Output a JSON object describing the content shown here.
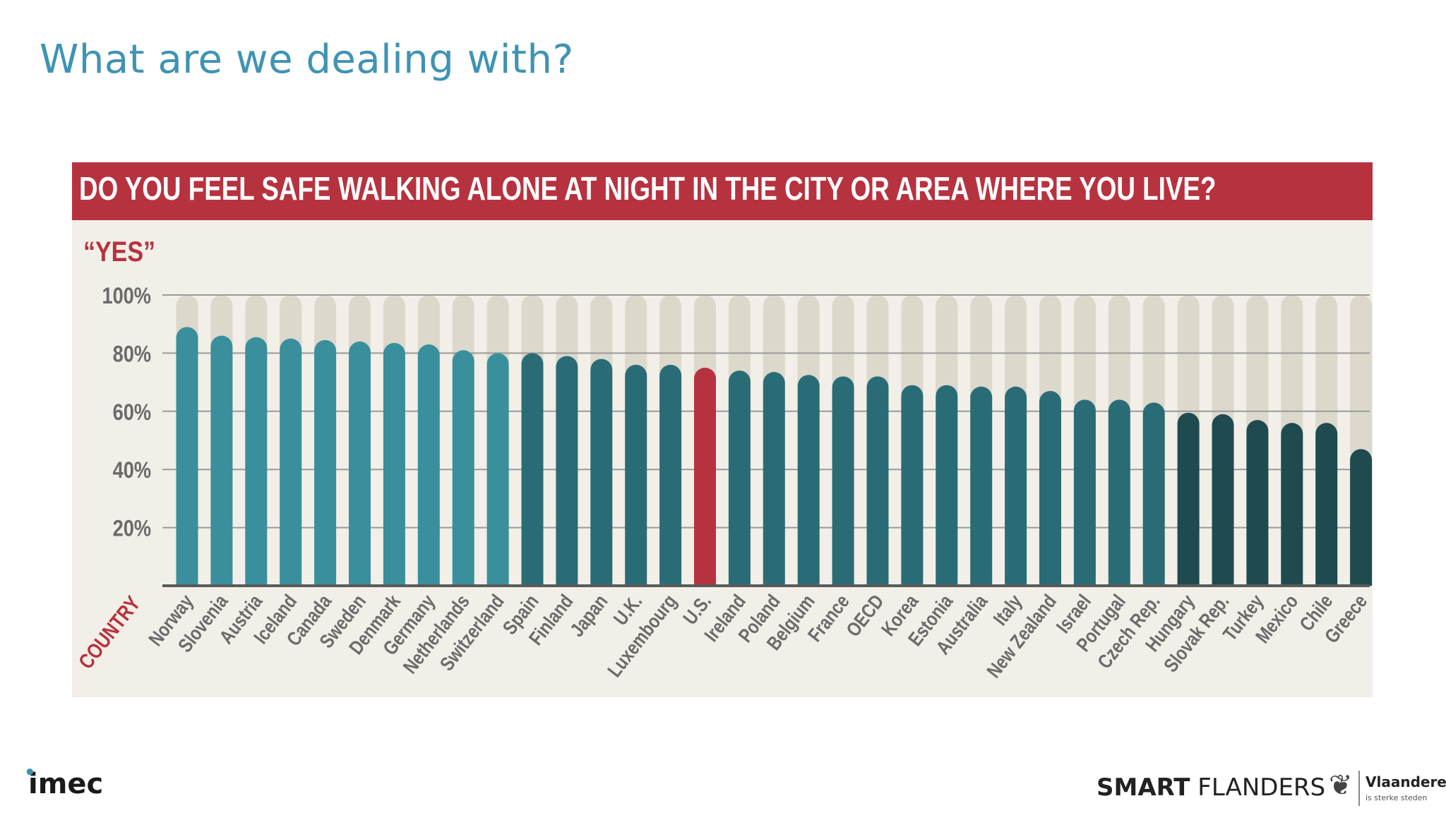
{
  "slide": {
    "title": "What are we dealing with?"
  },
  "footer": {
    "imec_logo": "imec",
    "smart_flanders_bold": "SMART",
    "smart_flanders_rest": " FLANDERS",
    "vlaanderen_name": "Vlaanderen",
    "vlaanderen_sub": "is sterke steden",
    "vlaanderen_icon": "lion-icon"
  },
  "chart_data": {
    "type": "bar",
    "title": "DO YOU FEEL SAFE WALKING ALONE AT NIGHT IN THE CITY OR AREA WHERE YOU LIVE?",
    "ylabel": "“YES”",
    "xlabel": "COUNTRY",
    "ylim": [
      0,
      100
    ],
    "yticks": [
      20,
      40,
      60,
      80,
      100
    ],
    "ytick_labels": [
      "20%",
      "40%",
      "60%",
      "80%",
      "100%"
    ],
    "grid": true,
    "categories": [
      "Norway",
      "Slovenia",
      "Austria",
      "Iceland",
      "Canada",
      "Sweden",
      "Denmark",
      "Germany",
      "Netherlands",
      "Switzerland",
      "Spain",
      "Finland",
      "Japan",
      "U.K.",
      "Luxembourg",
      "U.S.",
      "Ireland",
      "Poland",
      "Belgium",
      "France",
      "OECD",
      "Korea",
      "Estonia",
      "Australia",
      "Italy",
      "New Zealand",
      "Israel",
      "Portugal",
      "Czech Rep.",
      "Hungary",
      "Slovak Rep.",
      "Turkey",
      "Mexico",
      "Chile",
      "Greece"
    ],
    "values": [
      89,
      86,
      85.5,
      85,
      84.5,
      84,
      83.5,
      83,
      81,
      80,
      80,
      79,
      78,
      76,
      76,
      75,
      74,
      73.5,
      72.5,
      72,
      72,
      69,
      69,
      68.5,
      68.5,
      67,
      64,
      64,
      63,
      59.5,
      59,
      57,
      56,
      56,
      47
    ],
    "colors": {
      "top_group": "#3a8f9c",
      "middle_group": "#2a6c76",
      "bottom_group": "#1f4a50",
      "highlight": "#b7323f",
      "background_bar": "#dcd8cc",
      "axis": "#5a5a5a",
      "gridline": "#9a9a9a",
      "country_label": "#b7323f",
      "label": "#6b6b6b"
    },
    "groups": {
      "top_count": 10,
      "bottom_start": 29,
      "highlight_index": 15
    }
  }
}
